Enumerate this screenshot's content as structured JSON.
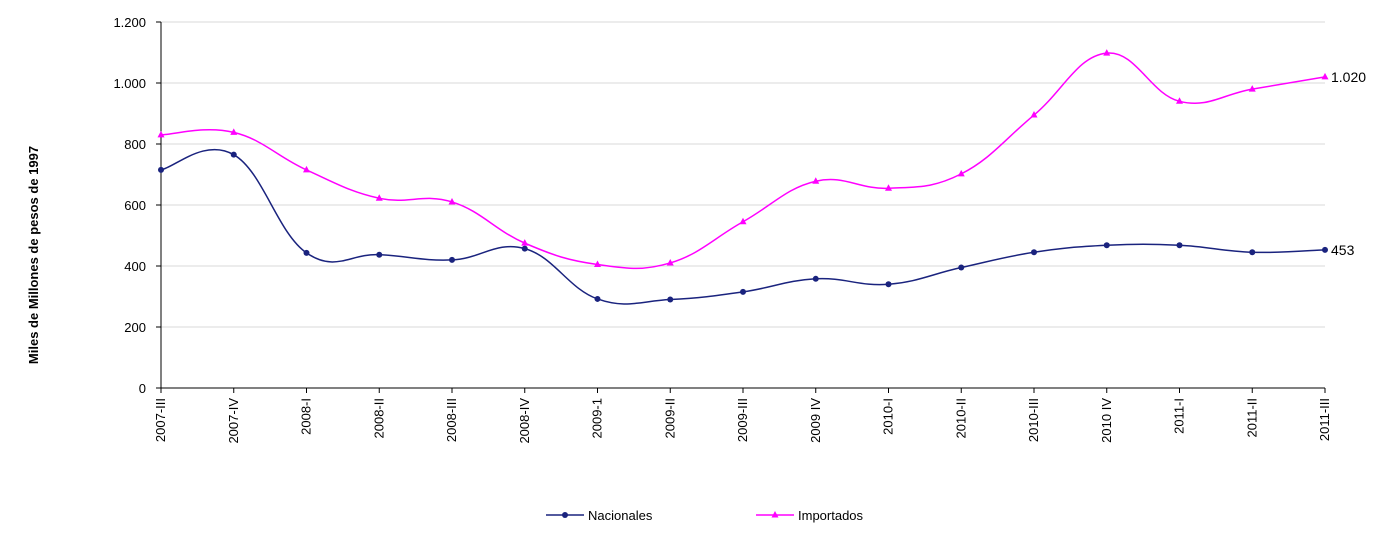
{
  "chart_data": {
    "type": "line",
    "title": "",
    "xlabel": "",
    "ylabel": "Miles de Millones de pesos de 1997",
    "ylim": [
      0,
      1200
    ],
    "yticks": [
      0,
      200,
      400,
      600,
      800,
      1000,
      1200
    ],
    "ytick_labels": [
      "0",
      "200",
      "400",
      "600",
      "800",
      "1.000",
      "1.200"
    ],
    "grid": "horizontal",
    "legend_position": "bottom",
    "categories": [
      "2007-III",
      "2007-IV",
      "2008-I",
      "2008-II",
      "2008-III",
      "2008-IV",
      "2009-1",
      "2009-II",
      "2009-III",
      "2009 IV",
      "2010-I",
      "2010-II",
      "2010-III",
      "2010 IV",
      "2011-I",
      "2011-II",
      "2011-III"
    ],
    "series": [
      {
        "name": "Nacionales",
        "color": "#1a237e",
        "marker": "circle",
        "values": [
          715,
          765,
          443,
          437,
          420,
          457,
          292,
          290,
          315,
          358,
          340,
          395,
          445,
          468,
          468,
          445,
          453
        ],
        "end_label": "453"
      },
      {
        "name": "Importados",
        "color": "#ff00ff",
        "marker": "triangle",
        "values": [
          830,
          838,
          715,
          622,
          610,
          475,
          405,
          410,
          545,
          678,
          655,
          702,
          895,
          1098,
          940,
          980,
          1020
        ],
        "end_label": "1.020"
      }
    ]
  }
}
